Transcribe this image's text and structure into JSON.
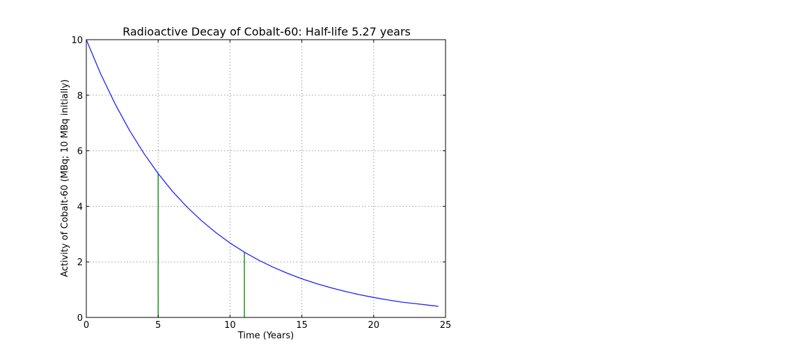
{
  "chart_data": {
    "type": "line",
    "title": "Radioactive Decay of Cobalt-60: Half-life 5.27 years",
    "xlabel": "Time (Years)",
    "ylabel": "Activity of Cobalt-60 (MBq; 10 MBq initially)",
    "xlim": [
      0,
      25
    ],
    "ylim": [
      0,
      10
    ],
    "xticks": [
      0,
      5,
      10,
      15,
      20,
      25
    ],
    "yticks": [
      0,
      2,
      4,
      6,
      8,
      10
    ],
    "grid": true,
    "series": [
      {
        "color": "#1f1fff",
        "x": [
          0,
          1,
          2,
          3,
          4,
          5,
          6,
          7,
          8,
          9,
          10,
          11,
          12,
          13,
          14,
          15,
          16,
          17,
          18,
          19,
          20,
          21,
          22,
          23,
          24,
          24.5
        ],
        "y": [
          10.0,
          8.77,
          7.69,
          6.74,
          5.91,
          5.18,
          4.54,
          3.98,
          3.49,
          3.06,
          2.68,
          2.35,
          2.06,
          1.81,
          1.59,
          1.39,
          1.22,
          1.07,
          0.94,
          0.82,
          0.72,
          0.63,
          0.55,
          0.49,
          0.43,
          0.4
        ]
      }
    ],
    "vlines": [
      {
        "color": "#008000",
        "x": 5,
        "y": 5.18
      },
      {
        "color": "#008000",
        "x": 11,
        "y": 2.35
      }
    ]
  }
}
